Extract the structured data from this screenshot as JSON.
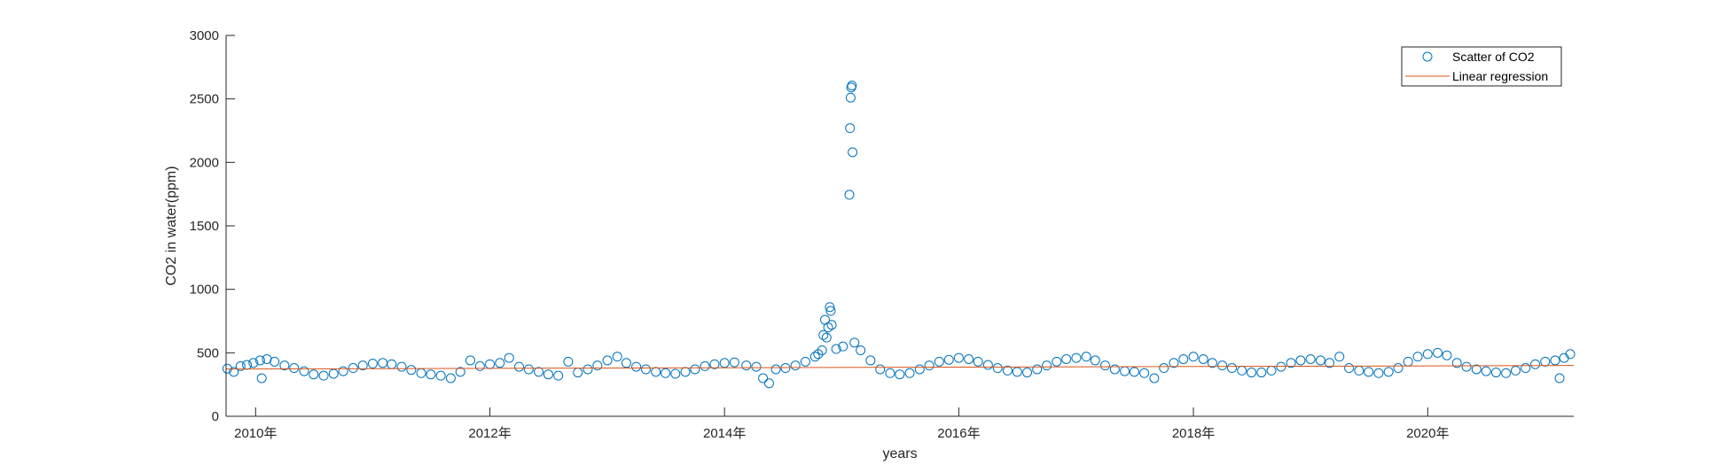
{
  "chart_data": {
    "type": "scatter",
    "xlabel": "years",
    "ylabel": "CO2 in water(ppm)",
    "xlim": [
      "2009-10-01",
      "2021-03-31"
    ],
    "ylim": [
      0,
      3000
    ],
    "y_ticks": [
      0,
      500,
      1000,
      1500,
      2000,
      2500,
      3000
    ],
    "x_ticks": [
      {
        "date": "2010-01-01",
        "label": "2010年"
      },
      {
        "date": "2012-01-01",
        "label": "2012年"
      },
      {
        "date": "2014-01-01",
        "label": "2014年"
      },
      {
        "date": "2016-01-01",
        "label": "2016年"
      },
      {
        "date": "2018-01-01",
        "label": "2018年"
      },
      {
        "date": "2020-01-01",
        "label": "2020年"
      }
    ],
    "grid": false,
    "legend_position": "top-right",
    "colors": {
      "scatter": "#0072BD",
      "regression": "#D95319",
      "axis": "#262626"
    },
    "series": [
      {
        "name": "Scatter of CO2",
        "kind": "scatter",
        "points": [
          [
            "2009-10-05",
            375
          ],
          [
            "2009-10-25",
            350
          ],
          [
            "2009-11-15",
            395
          ],
          [
            "2009-12-05",
            405
          ],
          [
            "2009-12-25",
            420
          ],
          [
            "2010-01-15",
            440
          ],
          [
            "2010-01-20",
            300
          ],
          [
            "2010-02-05",
            450
          ],
          [
            "2010-03-01",
            430
          ],
          [
            "2010-04-01",
            400
          ],
          [
            "2010-05-01",
            380
          ],
          [
            "2010-06-01",
            355
          ],
          [
            "2010-07-01",
            330
          ],
          [
            "2010-08-01",
            320
          ],
          [
            "2010-09-01",
            335
          ],
          [
            "2010-10-01",
            355
          ],
          [
            "2010-11-01",
            380
          ],
          [
            "2010-12-01",
            400
          ],
          [
            "2011-01-01",
            415
          ],
          [
            "2011-02-01",
            420
          ],
          [
            "2011-03-01",
            410
          ],
          [
            "2011-04-01",
            390
          ],
          [
            "2011-05-01",
            365
          ],
          [
            "2011-06-01",
            340
          ],
          [
            "2011-07-01",
            330
          ],
          [
            "2011-08-01",
            320
          ],
          [
            "2011-09-01",
            300
          ],
          [
            "2011-10-01",
            350
          ],
          [
            "2011-11-01",
            440
          ],
          [
            "2011-12-01",
            395
          ],
          [
            "2012-01-01",
            410
          ],
          [
            "2012-02-01",
            420
          ],
          [
            "2012-03-01",
            460
          ],
          [
            "2012-04-01",
            390
          ],
          [
            "2012-05-01",
            370
          ],
          [
            "2012-06-01",
            350
          ],
          [
            "2012-07-01",
            330
          ],
          [
            "2012-08-01",
            320
          ],
          [
            "2012-09-01",
            430
          ],
          [
            "2012-10-01",
            345
          ],
          [
            "2012-11-01",
            370
          ],
          [
            "2012-12-01",
            400
          ],
          [
            "2013-01-01",
            440
          ],
          [
            "2013-02-01",
            470
          ],
          [
            "2013-03-01",
            420
          ],
          [
            "2013-04-01",
            390
          ],
          [
            "2013-05-01",
            370
          ],
          [
            "2013-06-01",
            350
          ],
          [
            "2013-07-01",
            340
          ],
          [
            "2013-08-01",
            335
          ],
          [
            "2013-09-01",
            350
          ],
          [
            "2013-10-01",
            370
          ],
          [
            "2013-11-01",
            395
          ],
          [
            "2013-12-01",
            410
          ],
          [
            "2014-01-01",
            420
          ],
          [
            "2014-02-01",
            425
          ],
          [
            "2014-03-10",
            400
          ],
          [
            "2014-04-10",
            390
          ],
          [
            "2014-05-01",
            300
          ],
          [
            "2014-05-20",
            260
          ],
          [
            "2014-06-10",
            370
          ],
          [
            "2014-07-10",
            380
          ],
          [
            "2014-08-10",
            400
          ],
          [
            "2014-09-10",
            430
          ],
          [
            "2014-10-10",
            470
          ],
          [
            "2014-10-20",
            490
          ],
          [
            "2014-11-01",
            520
          ],
          [
            "2014-11-05",
            640
          ],
          [
            "2014-11-10",
            760
          ],
          [
            "2014-11-15",
            620
          ],
          [
            "2014-11-20",
            700
          ],
          [
            "2014-11-25",
            860
          ],
          [
            "2014-11-28",
            830
          ],
          [
            "2014-12-01",
            720
          ],
          [
            "2014-12-15",
            530
          ],
          [
            "2015-01-05",
            550
          ],
          [
            "2015-01-25",
            1745
          ],
          [
            "2015-01-27",
            2270
          ],
          [
            "2015-01-29",
            2510
          ],
          [
            "2015-01-31",
            2590
          ],
          [
            "2015-02-02",
            2605
          ],
          [
            "2015-02-04",
            2080
          ],
          [
            "2015-02-10",
            580
          ],
          [
            "2015-03-01",
            520
          ],
          [
            "2015-04-01",
            440
          ],
          [
            "2015-05-01",
            370
          ],
          [
            "2015-06-01",
            340
          ],
          [
            "2015-07-01",
            330
          ],
          [
            "2015-08-01",
            340
          ],
          [
            "2015-09-01",
            370
          ],
          [
            "2015-10-01",
            400
          ],
          [
            "2015-11-01",
            430
          ],
          [
            "2015-12-01",
            445
          ],
          [
            "2016-01-01",
            460
          ],
          [
            "2016-02-01",
            450
          ],
          [
            "2016-03-01",
            430
          ],
          [
            "2016-04-01",
            405
          ],
          [
            "2016-05-01",
            380
          ],
          [
            "2016-06-01",
            360
          ],
          [
            "2016-07-01",
            350
          ],
          [
            "2016-08-01",
            345
          ],
          [
            "2016-09-01",
            370
          ],
          [
            "2016-10-01",
            400
          ],
          [
            "2016-11-01",
            430
          ],
          [
            "2016-12-01",
            450
          ],
          [
            "2017-01-01",
            460
          ],
          [
            "2017-02-01",
            470
          ],
          [
            "2017-03-01",
            440
          ],
          [
            "2017-04-01",
            400
          ],
          [
            "2017-05-01",
            370
          ],
          [
            "2017-06-01",
            355
          ],
          [
            "2017-07-01",
            350
          ],
          [
            "2017-08-01",
            340
          ],
          [
            "2017-09-01",
            300
          ],
          [
            "2017-10-01",
            380
          ],
          [
            "2017-11-01",
            420
          ],
          [
            "2017-12-01",
            450
          ],
          [
            "2018-01-01",
            470
          ],
          [
            "2018-02-01",
            450
          ],
          [
            "2018-03-01",
            420
          ],
          [
            "2018-04-01",
            400
          ],
          [
            "2018-05-01",
            380
          ],
          [
            "2018-06-01",
            360
          ],
          [
            "2018-07-01",
            345
          ],
          [
            "2018-08-01",
            345
          ],
          [
            "2018-09-01",
            360
          ],
          [
            "2018-10-01",
            390
          ],
          [
            "2018-11-01",
            420
          ],
          [
            "2018-12-01",
            440
          ],
          [
            "2019-01-01",
            450
          ],
          [
            "2019-02-01",
            440
          ],
          [
            "2019-03-01",
            420
          ],
          [
            "2019-04-01",
            470
          ],
          [
            "2019-05-01",
            380
          ],
          [
            "2019-06-01",
            360
          ],
          [
            "2019-07-01",
            350
          ],
          [
            "2019-08-01",
            340
          ],
          [
            "2019-09-01",
            350
          ],
          [
            "2019-10-01",
            380
          ],
          [
            "2019-11-01",
            430
          ],
          [
            "2019-12-01",
            470
          ],
          [
            "2020-01-01",
            490
          ],
          [
            "2020-02-01",
            500
          ],
          [
            "2020-03-01",
            480
          ],
          [
            "2020-04-01",
            420
          ],
          [
            "2020-05-01",
            390
          ],
          [
            "2020-06-01",
            370
          ],
          [
            "2020-07-01",
            355
          ],
          [
            "2020-08-01",
            345
          ],
          [
            "2020-09-01",
            340
          ],
          [
            "2020-10-01",
            360
          ],
          [
            "2020-11-01",
            380
          ],
          [
            "2020-12-01",
            410
          ],
          [
            "2021-01-01",
            430
          ],
          [
            "2021-02-01",
            440
          ],
          [
            "2021-02-15",
            300
          ],
          [
            "2021-03-01",
            460
          ],
          [
            "2021-03-20",
            490
          ]
        ]
      },
      {
        "name": "Linear regression",
        "kind": "line",
        "points": [
          [
            "2009-10-01",
            372
          ],
          [
            "2021-03-31",
            400
          ]
        ]
      }
    ]
  }
}
